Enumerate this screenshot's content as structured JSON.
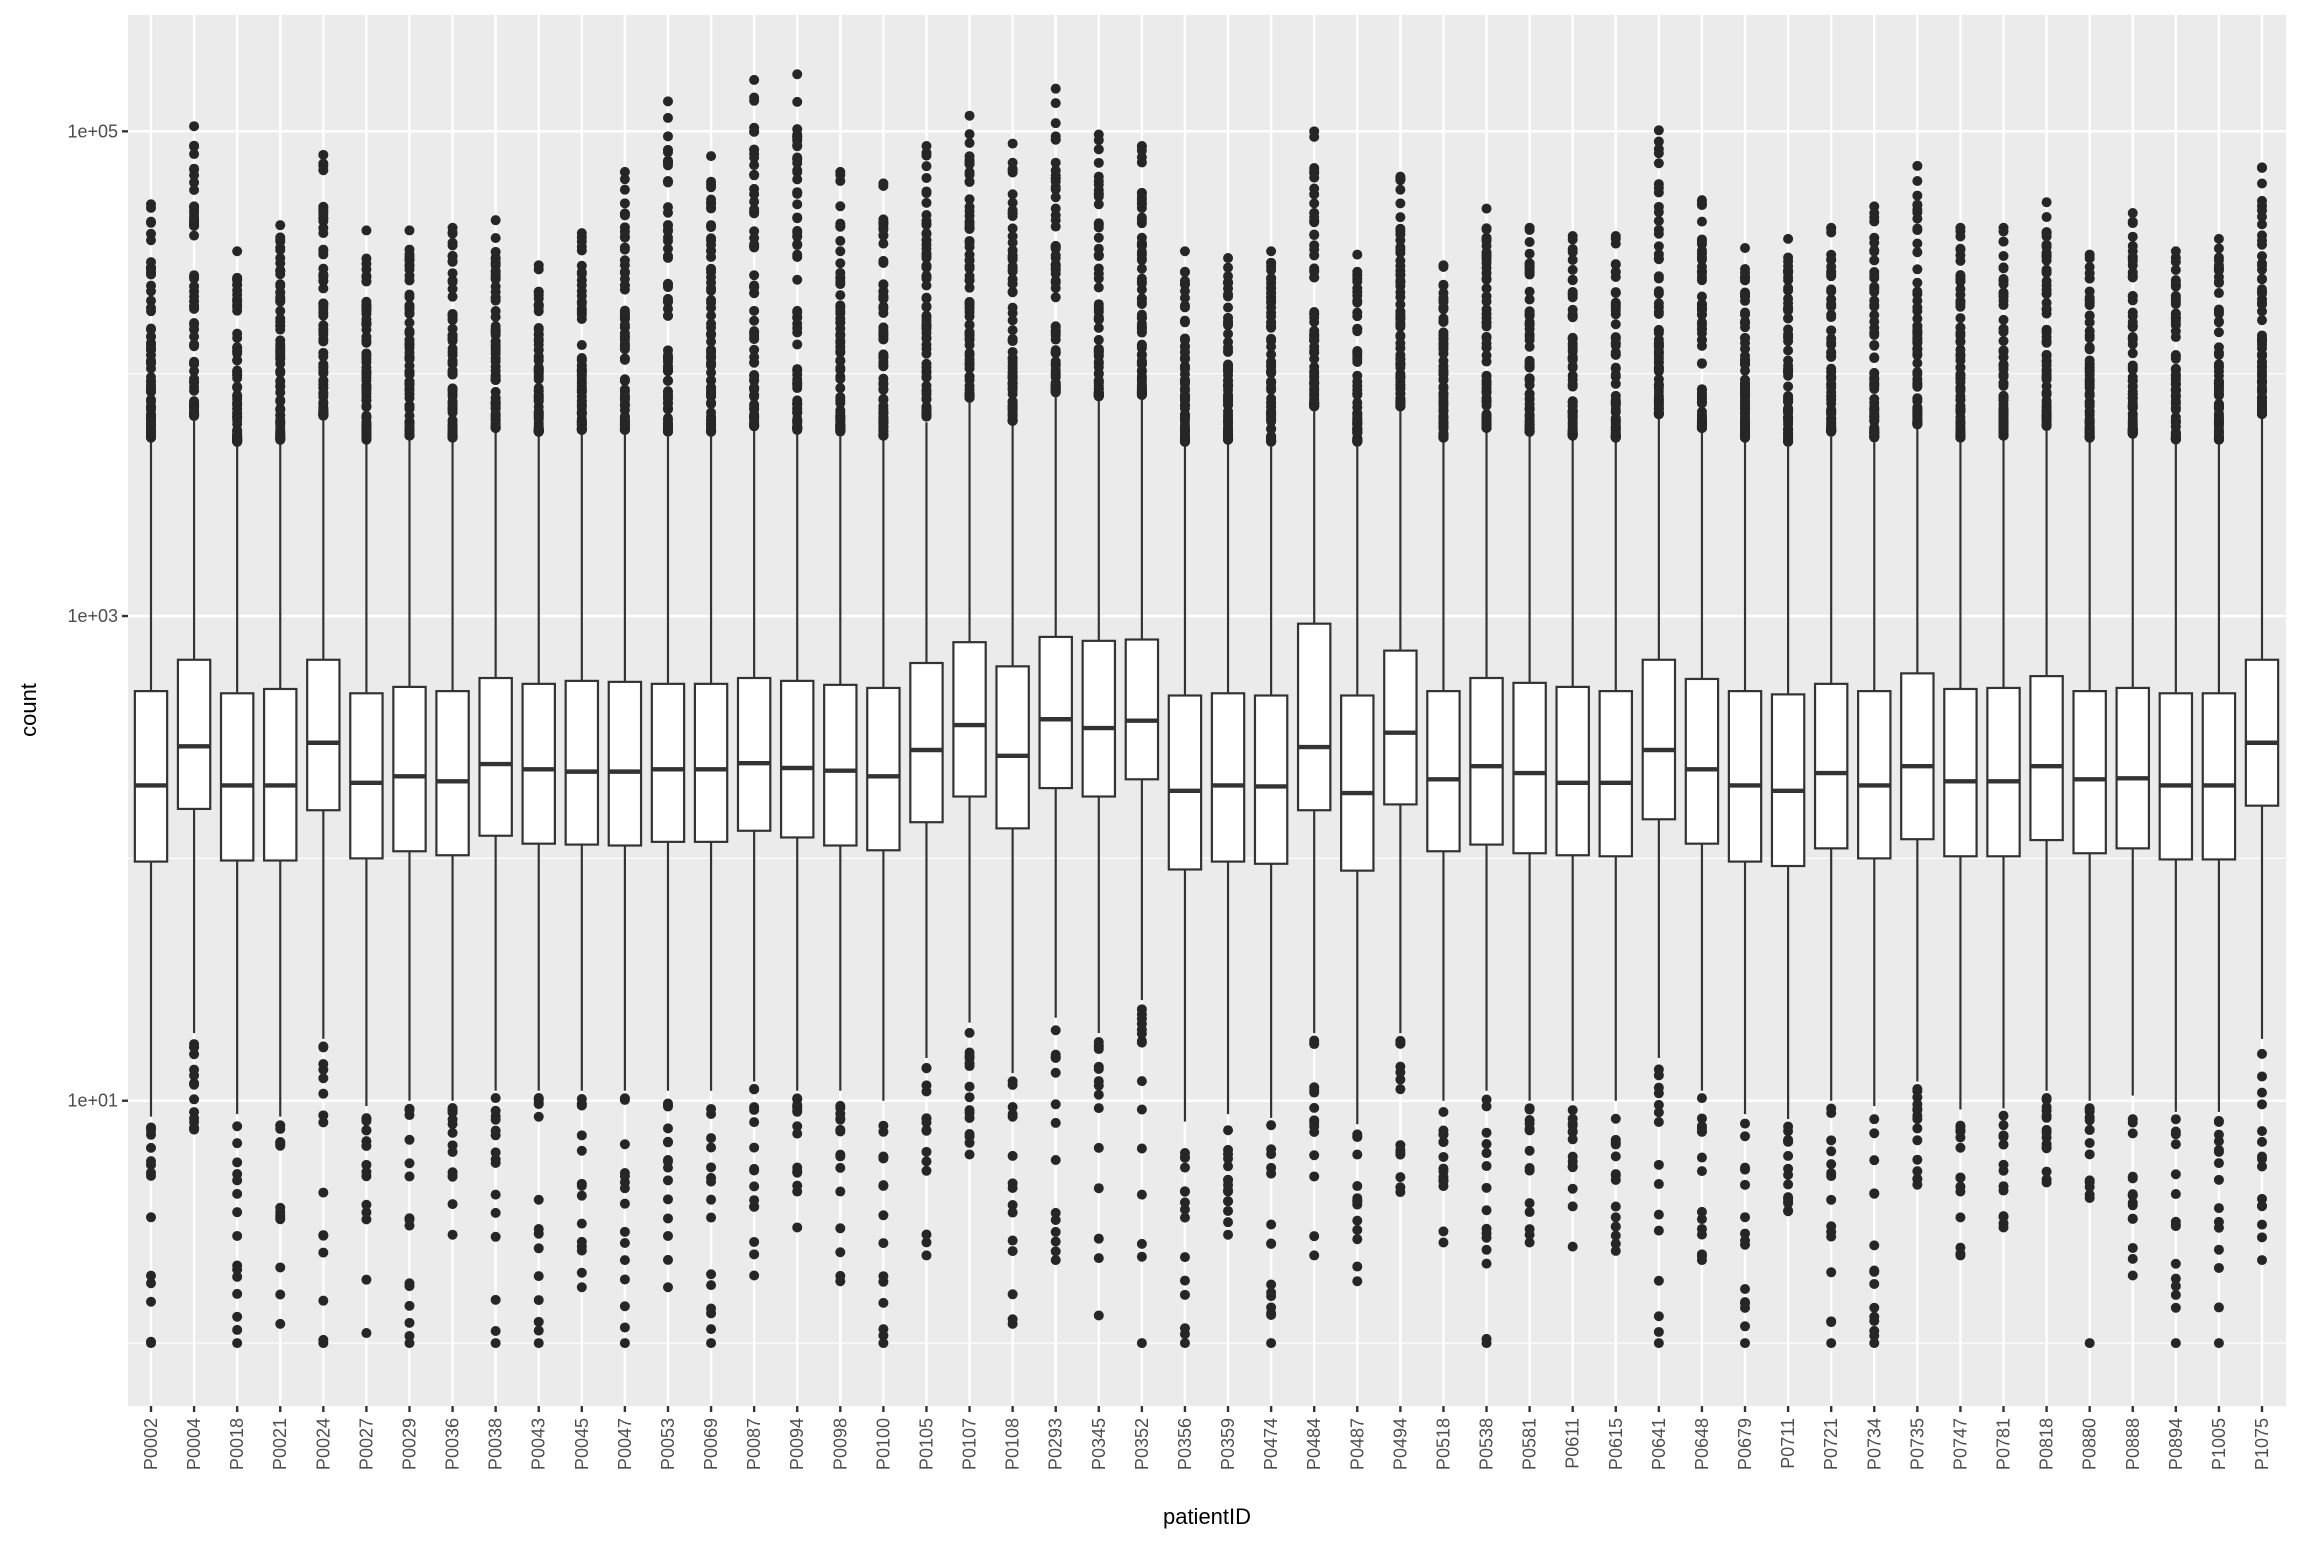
{
  "chart_data": {
    "type": "boxplot",
    "title": "",
    "xlabel": "patientID",
    "ylabel": "count",
    "yscale": "log10",
    "ylim": [
      0.55,
      302000
    ],
    "grid": true,
    "yticks": [
      {
        "value": 10,
        "label": "1e+01"
      },
      {
        "value": 1000,
        "label": "1e+03"
      },
      {
        "value": 100000,
        "label": "1e+05"
      }
    ],
    "y_minor_gridlines": [
      1,
      100,
      10000
    ],
    "colors": {
      "panel": "#EBEBEB",
      "grid": "#FFFFFF",
      "box_fill": "#FFFFFF",
      "line": "#333333",
      "outlier": "#262626",
      "text": "#4D4D4D",
      "title": "#000000"
    },
    "categories": [
      "P0002",
      "P0004",
      "P0018",
      "P0021",
      "P0024",
      "P0027",
      "P0029",
      "P0036",
      "P0038",
      "P0043",
      "P0045",
      "P0047",
      "P0053",
      "P0069",
      "P0087",
      "P0094",
      "P0098",
      "P0100",
      "P0105",
      "P0107",
      "P0108",
      "P0293",
      "P0345",
      "P0352",
      "P0356",
      "P0359",
      "P0474",
      "P0484",
      "P0487",
      "P0494",
      "P0518",
      "P0538",
      "P0581",
      "P0611",
      "P0615",
      "P0641",
      "P0648",
      "P0679",
      "P0711",
      "P0721",
      "P0734",
      "P0735",
      "P0747",
      "P0781",
      "P0818",
      "P0880",
      "P0888",
      "P0894",
      "P1005",
      "P1075"
    ],
    "q3": [
      490,
      660,
      480,
      500,
      660,
      480,
      510,
      490,
      555,
      525,
      540,
      535,
      525,
      525,
      555,
      540,
      520,
      505,
      640,
      780,
      620,
      820,
      790,
      800,
      470,
      480,
      470,
      930,
      470,
      720,
      490,
      555,
      530,
      510,
      490,
      660,
      550,
      490,
      475,
      525,
      490,
      580,
      500,
      505,
      565,
      490,
      505,
      480,
      480,
      660
    ],
    "median": [
      200,
      290,
      200,
      200,
      300,
      205,
      218,
      208,
      245,
      233,
      228,
      228,
      233,
      233,
      247,
      236,
      230,
      218,
      280,
      355,
      265,
      375,
      345,
      370,
      190,
      200,
      198,
      288,
      186,
      330,
      212,
      240,
      225,
      205,
      205,
      280,
      233,
      200,
      190,
      225,
      200,
      240,
      208,
      208,
      240,
      212,
      214,
      200,
      200,
      300
    ],
    "q1": [
      97,
      160,
      98,
      98,
      158,
      100,
      107,
      103,
      124,
      115,
      114,
      113,
      117,
      117,
      130,
      122,
      113,
      108,
      141,
      180,
      133,
      195,
      180,
      212,
      90,
      97,
      95,
      158,
      89,
      167,
      107,
      114,
      105,
      103,
      102,
      145,
      115,
      97,
      93,
      110,
      100,
      120,
      102,
      102,
      119,
      105,
      110,
      99,
      99,
      165
    ],
    "whisker_low": [
      8.6,
      19,
      8.8,
      8.6,
      18,
      9.5,
      10,
      10,
      11,
      11,
      11,
      11,
      11,
      11,
      12,
      11,
      11,
      10,
      15,
      21,
      13,
      22,
      19,
      26,
      8.2,
      8.8,
      8.5,
      19,
      8,
      19,
      10,
      11,
      10,
      10,
      10,
      15,
      11,
      8.8,
      8.4,
      10,
      9.5,
      12,
      9.2,
      9.3,
      11,
      10,
      10.5,
      9,
      9,
      18
    ],
    "whisker_high": [
      5200,
      6400,
      5000,
      5100,
      6400,
      5100,
      5300,
      5200,
      5700,
      5500,
      5600,
      5600,
      5500,
      5500,
      5800,
      5600,
      5500,
      5300,
      6300,
      7600,
      6100,
      8000,
      7700,
      7800,
      5000,
      5100,
      5000,
      7000,
      5000,
      7000,
      5200,
      5700,
      5500,
      5300,
      5200,
      6500,
      5700,
      5200,
      5000,
      5500,
      5200,
      5900,
      5200,
      5300,
      5800,
      5200,
      5400,
      5100,
      5100,
      6500
    ],
    "outlier_max": [
      50000,
      105000,
      32000,
      41000,
      80000,
      39000,
      39000,
      40000,
      43000,
      28000,
      38000,
      68000,
      133000,
      79000,
      163000,
      172000,
      68000,
      61000,
      87000,
      116000,
      89000,
      150000,
      97000,
      87000,
      32000,
      30000,
      32000,
      100000,
      31000,
      65000,
      28000,
      48000,
      40000,
      37000,
      37000,
      101000,
      52000,
      33000,
      36000,
      40000,
      49000,
      72000,
      40000,
      40000,
      51000,
      31000,
      46000,
      32000,
      36000,
      71000
    ],
    "outlier_min": [
      1,
      7.6,
      1,
      1.2,
      1,
      1.1,
      1,
      2.8,
      1,
      1,
      1.7,
      1,
      1.7,
      1,
      1.9,
      3,
      1.8,
      1,
      2.3,
      6,
      1.2,
      2.2,
      1.3,
      1,
      1,
      2.8,
      1,
      2.3,
      1.8,
      4.2,
      2.6,
      1,
      2.6,
      2.5,
      2.4,
      1,
      2.2,
      1,
      3.5,
      1,
      1,
      4.5,
      2.3,
      3,
      4.6,
      1,
      1.9,
      1,
      1,
      2.2
    ]
  }
}
